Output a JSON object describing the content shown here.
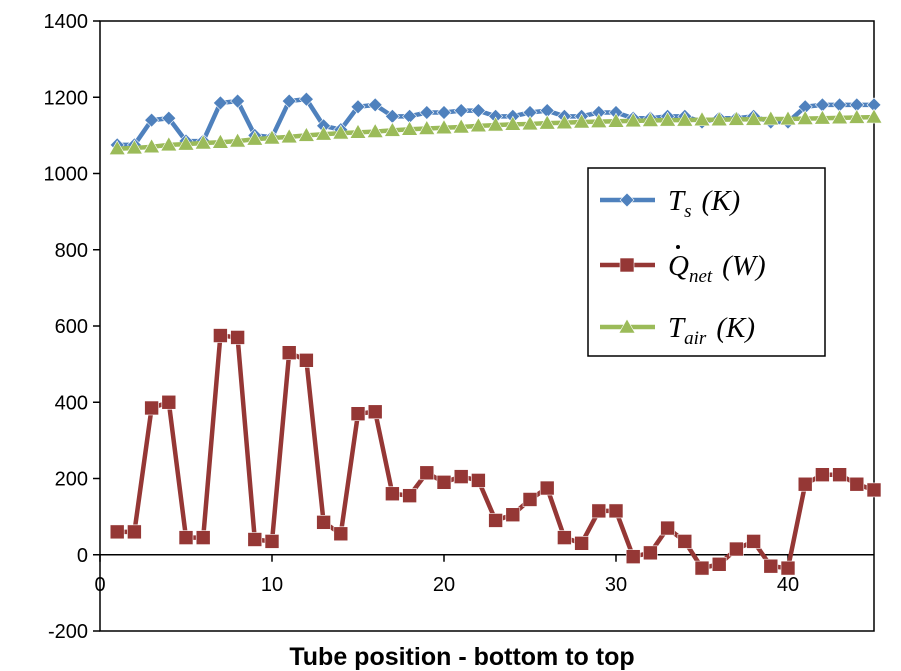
{
  "chart_data": {
    "type": "line",
    "xlabel": "Tube position - bottom to top",
    "ylabel": "",
    "xlim": [
      0,
      45
    ],
    "ylim": [
      -200,
      1400
    ],
    "xticks": [
      0,
      10,
      20,
      30,
      40
    ],
    "yticks": [
      -200,
      0,
      200,
      400,
      600,
      800,
      1000,
      1200,
      1400
    ],
    "grid": false,
    "legend_position": "right",
    "x": [
      1,
      2,
      3,
      4,
      5,
      6,
      7,
      8,
      9,
      10,
      11,
      12,
      13,
      14,
      15,
      16,
      17,
      18,
      19,
      20,
      21,
      22,
      23,
      24,
      25,
      26,
      27,
      28,
      29,
      30,
      31,
      32,
      33,
      34,
      35,
      36,
      37,
      38,
      39,
      40,
      41,
      42,
      43,
      44,
      45
    ],
    "series": [
      {
        "key": "ts",
        "legend": {
          "main": "T",
          "sub": "s",
          "unit": "(K)"
        },
        "color": "#4f81bd",
        "marker": "diamond",
        "values": [
          1075,
          1075,
          1140,
          1145,
          1085,
          1085,
          1185,
          1190,
          1100,
          1095,
          1190,
          1195,
          1125,
          1115,
          1175,
          1180,
          1150,
          1150,
          1160,
          1160,
          1165,
          1165,
          1150,
          1150,
          1160,
          1165,
          1150,
          1150,
          1160,
          1160,
          1145,
          1145,
          1150,
          1150,
          1135,
          1145,
          1145,
          1150,
          1135,
          1135,
          1175,
          1180,
          1180,
          1180,
          1180
        ]
      },
      {
        "key": "qnet",
        "legend": {
          "main": "Q",
          "sub": "net",
          "unit": "(W)"
        },
        "color": "#953735",
        "marker": "square",
        "values": [
          60,
          60,
          385,
          400,
          45,
          45,
          575,
          570,
          40,
          35,
          530,
          510,
          85,
          55,
          370,
          375,
          160,
          155,
          215,
          190,
          205,
          195,
          90,
          105,
          145,
          175,
          45,
          30,
          115,
          115,
          -5,
          5,
          70,
          35,
          -35,
          -25,
          15,
          35,
          -30,
          -35,
          185,
          210,
          210,
          185,
          170
        ]
      },
      {
        "key": "tair",
        "legend": {
          "main": "T",
          "sub": "air",
          "unit": "(K)"
        },
        "color": "#9bbb59",
        "marker": "triangle",
        "values": [
          1065,
          1067,
          1070,
          1075,
          1077,
          1080,
          1082,
          1085,
          1090,
          1093,
          1096,
          1100,
          1103,
          1106,
          1108,
          1110,
          1113,
          1116,
          1118,
          1120,
          1122,
          1125,
          1127,
          1129,
          1130,
          1132,
          1133,
          1135,
          1136,
          1137,
          1138,
          1139,
          1140,
          1140,
          1141,
          1141,
          1142,
          1142,
          1143,
          1143,
          1144,
          1145,
          1146,
          1147,
          1148
        ]
      }
    ]
  }
}
